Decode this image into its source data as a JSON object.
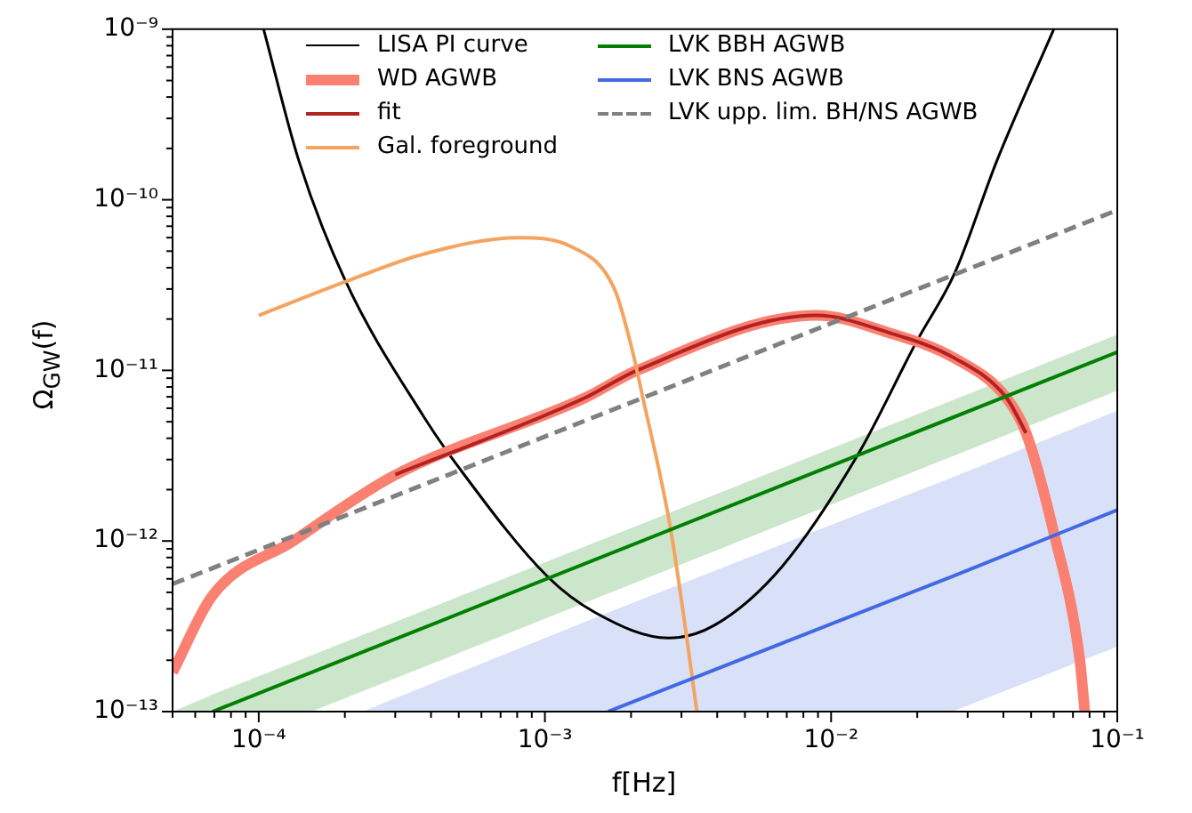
{
  "chart_data": {
    "type": "line",
    "xlabel": "f[Hz]",
    "ylabel": "Ω$_{GW}$(f)",
    "log": "xy",
    "grid": false,
    "legend": "top",
    "marker": "none",
    "xlim": [
      5e-05,
      0.1
    ],
    "ylim": [
      1e-13,
      1e-09
    ],
    "xticks": [
      {
        "value": 5e-05,
        "label": null
      },
      {
        "value": 6e-05,
        "label": null
      },
      {
        "value": 7e-05,
        "label": null
      },
      {
        "value": 8e-05,
        "label": null
      },
      {
        "value": 9e-05,
        "label": null
      },
      {
        "value": 0.0001,
        "label": "10⁻⁴"
      },
      {
        "value": 0.0002,
        "label": null
      },
      {
        "value": 0.0003,
        "label": null
      },
      {
        "value": 0.0004,
        "label": null
      },
      {
        "value": 0.0005,
        "label": null
      },
      {
        "value": 0.0006,
        "label": null
      },
      {
        "value": 0.0007,
        "label": null
      },
      {
        "value": 0.0008,
        "label": null
      },
      {
        "value": 0.0009,
        "label": null
      },
      {
        "value": 0.001,
        "label": "10⁻³"
      },
      {
        "value": 0.002,
        "label": null
      },
      {
        "value": 0.003,
        "label": null
      },
      {
        "value": 0.004,
        "label": null
      },
      {
        "value": 0.005,
        "label": null
      },
      {
        "value": 0.006,
        "label": null
      },
      {
        "value": 0.007,
        "label": null
      },
      {
        "value": 0.008,
        "label": null
      },
      {
        "value": 0.009,
        "label": null
      },
      {
        "value": 0.01,
        "label": "10⁻²"
      },
      {
        "value": 0.02,
        "label": null
      },
      {
        "value": 0.03,
        "label": null
      },
      {
        "value": 0.04,
        "label": null
      },
      {
        "value": 0.05,
        "label": null
      },
      {
        "value": 0.06,
        "label": null
      },
      {
        "value": 0.07,
        "label": null
      },
      {
        "value": 0.08,
        "label": null
      },
      {
        "value": 0.09,
        "label": null
      },
      {
        "value": 0.1,
        "label": "10⁻¹"
      }
    ],
    "yticks": [
      {
        "value": 1e-13,
        "label": "10⁻¹³"
      },
      {
        "value": 2e-13,
        "label": null
      },
      {
        "value": 3e-13,
        "label": null
      },
      {
        "value": 4e-13,
        "label": null
      },
      {
        "value": 5e-13,
        "label": null
      },
      {
        "value": 6e-13,
        "label": null
      },
      {
        "value": 7e-13,
        "label": null
      },
      {
        "value": 8e-13,
        "label": null
      },
      {
        "value": 9e-13,
        "label": null
      },
      {
        "value": 1e-12,
        "label": "10⁻¹²"
      },
      {
        "value": 2e-12,
        "label": null
      },
      {
        "value": 3e-12,
        "label": null
      },
      {
        "value": 4e-12,
        "label": null
      },
      {
        "value": 5e-12,
        "label": null
      },
      {
        "value": 6e-12,
        "label": null
      },
      {
        "value": 7e-12,
        "label": null
      },
      {
        "value": 8e-12,
        "label": null
      },
      {
        "value": 9e-12,
        "label": null
      },
      {
        "value": 1e-11,
        "label": "10⁻¹¹"
      },
      {
        "value": 2e-11,
        "label": null
      },
      {
        "value": 3e-11,
        "label": null
      },
      {
        "value": 4e-11,
        "label": null
      },
      {
        "value": 5e-11,
        "label": null
      },
      {
        "value": 6e-11,
        "label": null
      },
      {
        "value": 7e-11,
        "label": null
      },
      {
        "value": 8e-11,
        "label": null
      },
      {
        "value": 9e-11,
        "label": null
      },
      {
        "value": 1e-10,
        "label": "10⁻¹⁰"
      },
      {
        "value": 2e-10,
        "label": null
      },
      {
        "value": 3e-10,
        "label": null
      },
      {
        "value": 4e-10,
        "label": null
      },
      {
        "value": 5e-10,
        "label": null
      },
      {
        "value": 6e-10,
        "label": null
      },
      {
        "value": 7e-10,
        "label": null
      },
      {
        "value": 8e-10,
        "label": null
      },
      {
        "value": 9e-10,
        "label": null
      },
      {
        "value": 1e-09,
        "label": "10⁻⁹"
      }
    ],
    "series": [
      {
        "name": "LISA PI curve",
        "color": "#000000",
        "x": [
          0.000104,
          0.000138,
          0.0002,
          0.000376,
          0.0005,
          0.00102,
          0.0015,
          0.0027,
          0.0039,
          0.0067,
          0.0124,
          0.02,
          0.027,
          0.038,
          0.06
        ],
        "values": [
          1e-09,
          1.7e-10,
          3.4e-11,
          5.4e-12,
          2.7e-12,
          6.2e-13,
          3.8e-13,
          2.7e-13,
          3.2e-13,
          7e-13,
          3.2e-12,
          1.5e-11,
          3.7e-11,
          1.7e-10,
          1e-09
        ]
      },
      {
        "name": "WD AGWB",
        "color": "#fa8072",
        "x": [
          5e-05,
          6.9e-05,
          0.000132,
          0.000295,
          0.00138,
          0.0021,
          0.0089,
          0.0158,
          0.027,
          0.041,
          0.048,
          0.06,
          0.074,
          0.077
        ],
        "values": [
          1.7e-13,
          4.8e-13,
          1e-12,
          2.4e-12,
          6.9e-12,
          1e-11,
          2.1e-11,
          1.67e-11,
          1.18e-11,
          6.9e-12,
          4.3e-12,
          1.12e-12,
          2e-13,
          1e-13
        ]
      },
      {
        "name": "fit",
        "color": "#b22222",
        "x": [
          0.0003,
          0.00138,
          0.0021,
          0.0089,
          0.0158,
          0.027,
          0.041,
          0.048
        ],
        "values": [
          2.45e-12,
          6.9e-12,
          1e-11,
          2.1e-11,
          1.67e-11,
          1.18e-11,
          6.9e-12,
          4.3e-12
        ]
      },
      {
        "name": "Gal. foreground",
        "color": "#f4a460",
        "x": [
          0.0001,
          0.0002,
          0.000376,
          0.00081,
          0.00124,
          0.00175,
          0.002,
          0.0022,
          0.00275,
          0.0034
        ],
        "values": [
          2.1e-11,
          3.3e-11,
          4.8e-11,
          6e-11,
          5.3e-11,
          3e-11,
          1.4e-11,
          6.9e-12,
          1.17e-12,
          1e-13
        ]
      },
      {
        "name": "LVK BBH AGWB",
        "color": "#008000",
        "x": [
          5e-05,
          6.9e-05,
          0.000153,
          0.1
        ],
        "values": [
          null,
          1e-13,
          1.7e-13,
          1.28e-11
        ],
        "upper": [
          1e-13,
          1.26e-13,
          2.14e-13,
          1.62e-11
        ],
        "lower": [
          1e-13,
          1e-13,
          1e-13,
          7.6e-12
        ]
      },
      {
        "name": "LVK BNS AGWB",
        "color": "#4169e1",
        "x": [
          0.00023,
          0.00166,
          0.0265,
          0.1
        ],
        "values": [
          null,
          1e-13,
          6.2e-13,
          1.52e-12
        ],
        "upper": [
          1e-13,
          3.8e-13,
          2.36e-12,
          5.8e-12
        ],
        "lower": [
          1e-13,
          1e-13,
          1e-13,
          2.4e-13
        ]
      },
      {
        "name": "LVK upp. lim. BH/NS AGWB",
        "color": "#808080",
        "line_style": "dashed",
        "x": [
          5e-05,
          0.1
        ],
        "values": [
          5.6e-13,
          8.7e-11
        ]
      }
    ]
  }
}
